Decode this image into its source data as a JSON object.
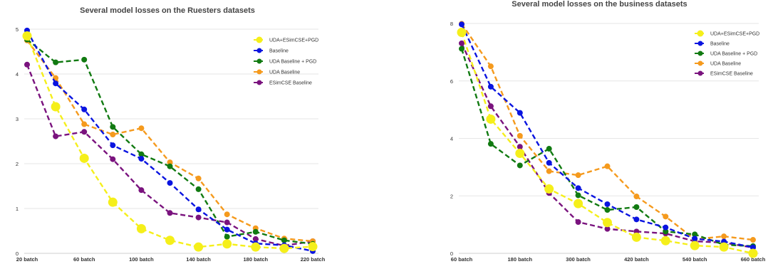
{
  "chart_data": [
    {
      "type": "line",
      "title": "Several model losses on the Ruesters datasets",
      "xlabel": "",
      "ylabel": "",
      "x": [
        "20 batch",
        "40 batch",
        "60 batch",
        "80 batch",
        "100 batch",
        "120 batch",
        "140 batch",
        "160 batch",
        "180 batch",
        "200 batch",
        "220 batch"
      ],
      "x_tick_labels": [
        "20 batch",
        "60 batch",
        "100 batch",
        "140 batch",
        "180 batch",
        "220 batch"
      ],
      "ylim": [
        0,
        5
      ],
      "y_ticks": [
        0,
        1,
        2,
        3,
        4,
        5
      ],
      "grid": "horizontal",
      "legend": "top-right",
      "series": [
        {
          "name": "UDA+ESimCSE+PGD",
          "color": "#f5ef1a",
          "marker": "large",
          "values": [
            4.85,
            3.27,
            2.12,
            1.14,
            0.55,
            0.29,
            0.14,
            0.21,
            0.14,
            0.11,
            0.15
          ]
        },
        {
          "name": "Baseline",
          "color": "#0a14e0",
          "values": [
            4.97,
            3.79,
            3.21,
            2.41,
            2.11,
            1.57,
            0.98,
            0.53,
            0.22,
            0.18,
            0.05
          ]
        },
        {
          "name": "UDA Baseline + PGD",
          "color": "#117a11",
          "values": [
            4.77,
            4.26,
            4.32,
            2.82,
            2.21,
            1.94,
            1.43,
            0.37,
            0.48,
            0.29,
            0.21
          ]
        },
        {
          "name": "UDA Baseline",
          "color": "#f59a1d",
          "values": [
            4.75,
            3.91,
            2.88,
            2.65,
            2.79,
            2.03,
            1.67,
            0.87,
            0.56,
            0.33,
            0.27
          ]
        },
        {
          "name": "ESimCSE Baseline",
          "color": "#7a137e",
          "values": [
            4.21,
            2.61,
            2.71,
            2.1,
            1.41,
            0.9,
            0.8,
            0.69,
            0.32,
            0.17,
            0.27
          ]
        }
      ]
    },
    {
      "type": "line",
      "title": "Several model losses on the business datasets",
      "xlabel": "",
      "ylabel": "",
      "x": [
        "60 batch",
        "120 batch",
        "180 batch",
        "240 batch",
        "300 batch",
        "360 batch",
        "420 batch",
        "480 batch",
        "540 batch",
        "600 batch",
        "660 batch"
      ],
      "x_tick_labels": [
        "60 batch",
        "180 batch",
        "300 batch",
        "420 batch",
        "540 batch",
        "660 batch"
      ],
      "ylim": [
        0,
        8
      ],
      "y_ticks": [
        0,
        2,
        4,
        6,
        8
      ],
      "grid": "horizontal",
      "legend": "top-right",
      "series": [
        {
          "name": "UDA+ESimCSE+PGD",
          "color": "#f5ef1a",
          "marker": "large",
          "values": [
            7.69,
            4.67,
            3.48,
            2.24,
            1.73,
            1.07,
            0.56,
            0.44,
            0.27,
            0.22,
            0.0
          ]
        },
        {
          "name": "Baseline",
          "color": "#0a14e0",
          "values": [
            7.97,
            5.8,
            4.89,
            3.15,
            2.27,
            1.71,
            1.18,
            0.9,
            0.51,
            0.41,
            0.21
          ]
        },
        {
          "name": "UDA Baseline + PGD",
          "color": "#117a11",
          "values": [
            7.12,
            3.81,
            3.06,
            3.64,
            2.02,
            1.51,
            1.61,
            0.76,
            0.66,
            0.3,
            0.25
          ]
        },
        {
          "name": "UDA Baseline",
          "color": "#f59a1d",
          "values": [
            7.99,
            6.51,
            4.09,
            2.86,
            2.72,
            3.03,
            1.98,
            1.28,
            0.49,
            0.59,
            0.47
          ]
        },
        {
          "name": "ESimCSE Baseline",
          "color": "#7a137e",
          "values": [
            7.31,
            5.12,
            3.71,
            2.1,
            1.09,
            0.85,
            0.76,
            0.69,
            0.42,
            0.37,
            0.2
          ]
        }
      ]
    }
  ]
}
